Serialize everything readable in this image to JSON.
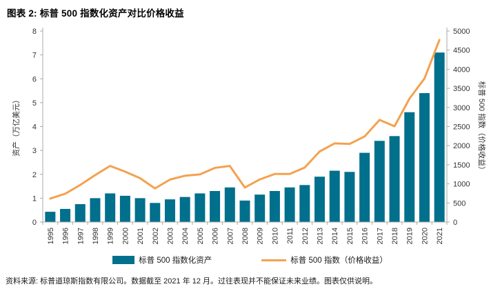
{
  "source_note": "资料来源: 标普道琼斯指数有限公司。数据截至 2021 年 12 月。过往表现并不能保证未来业绩。图表仅供说明。",
  "colors": {
    "bar": "#00708c",
    "line": "#f4a14e",
    "axis": "#a9a9a9",
    "tick_text": "#333333"
  },
  "chart_data": {
    "type": "bar+line combo",
    "title": "图表 2: 标普 500 指数化资产对比价格收益",
    "categories": [
      "1995",
      "1996",
      "1997",
      "1998",
      "1999",
      "2000",
      "2001",
      "2002",
      "2003",
      "2004",
      "2005",
      "2006",
      "2007",
      "2008",
      "2009",
      "2010",
      "2011",
      "2012",
      "2013",
      "2014",
      "2015",
      "2016",
      "2017",
      "2018",
      "2019",
      "2020",
      "2021"
    ],
    "series": [
      {
        "name": "标普 500 指数化资产",
        "type": "bar",
        "axis": "left",
        "values": [
          0.43,
          0.55,
          0.75,
          1.0,
          1.2,
          1.1,
          1.0,
          0.8,
          0.95,
          1.05,
          1.2,
          1.3,
          1.45,
          0.9,
          1.15,
          1.3,
          1.45,
          1.55,
          1.9,
          2.15,
          2.1,
          2.9,
          3.4,
          3.6,
          4.6,
          5.4,
          7.1
        ]
      },
      {
        "name": "标普 500 指数（价格收益）",
        "type": "line",
        "axis": "right",
        "values": [
          615,
          741,
          970,
          1229,
          1469,
          1320,
          1148,
          880,
          1112,
          1212,
          1248,
          1418,
          1468,
          903,
          1115,
          1258,
          1258,
          1426,
          1848,
          2059,
          2044,
          2239,
          2674,
          2507,
          3231,
          3756,
          4766
        ]
      }
    ],
    "ylabel_left": "资产（万亿美元）",
    "ylabel_right": "标普 500 指数（价格收益）",
    "ylim_left": [
      0,
      8
    ],
    "ylim_right": [
      0,
      5000
    ],
    "ticks_left": [
      0,
      1,
      2,
      3,
      4,
      5,
      6,
      7,
      8
    ],
    "ticks_right": [
      0,
      500,
      1000,
      1500,
      2000,
      2500,
      3000,
      3500,
      4000,
      4500,
      5000
    ],
    "grid": false,
    "legend_position": "bottom",
    "x_tick_rotation": -90
  }
}
